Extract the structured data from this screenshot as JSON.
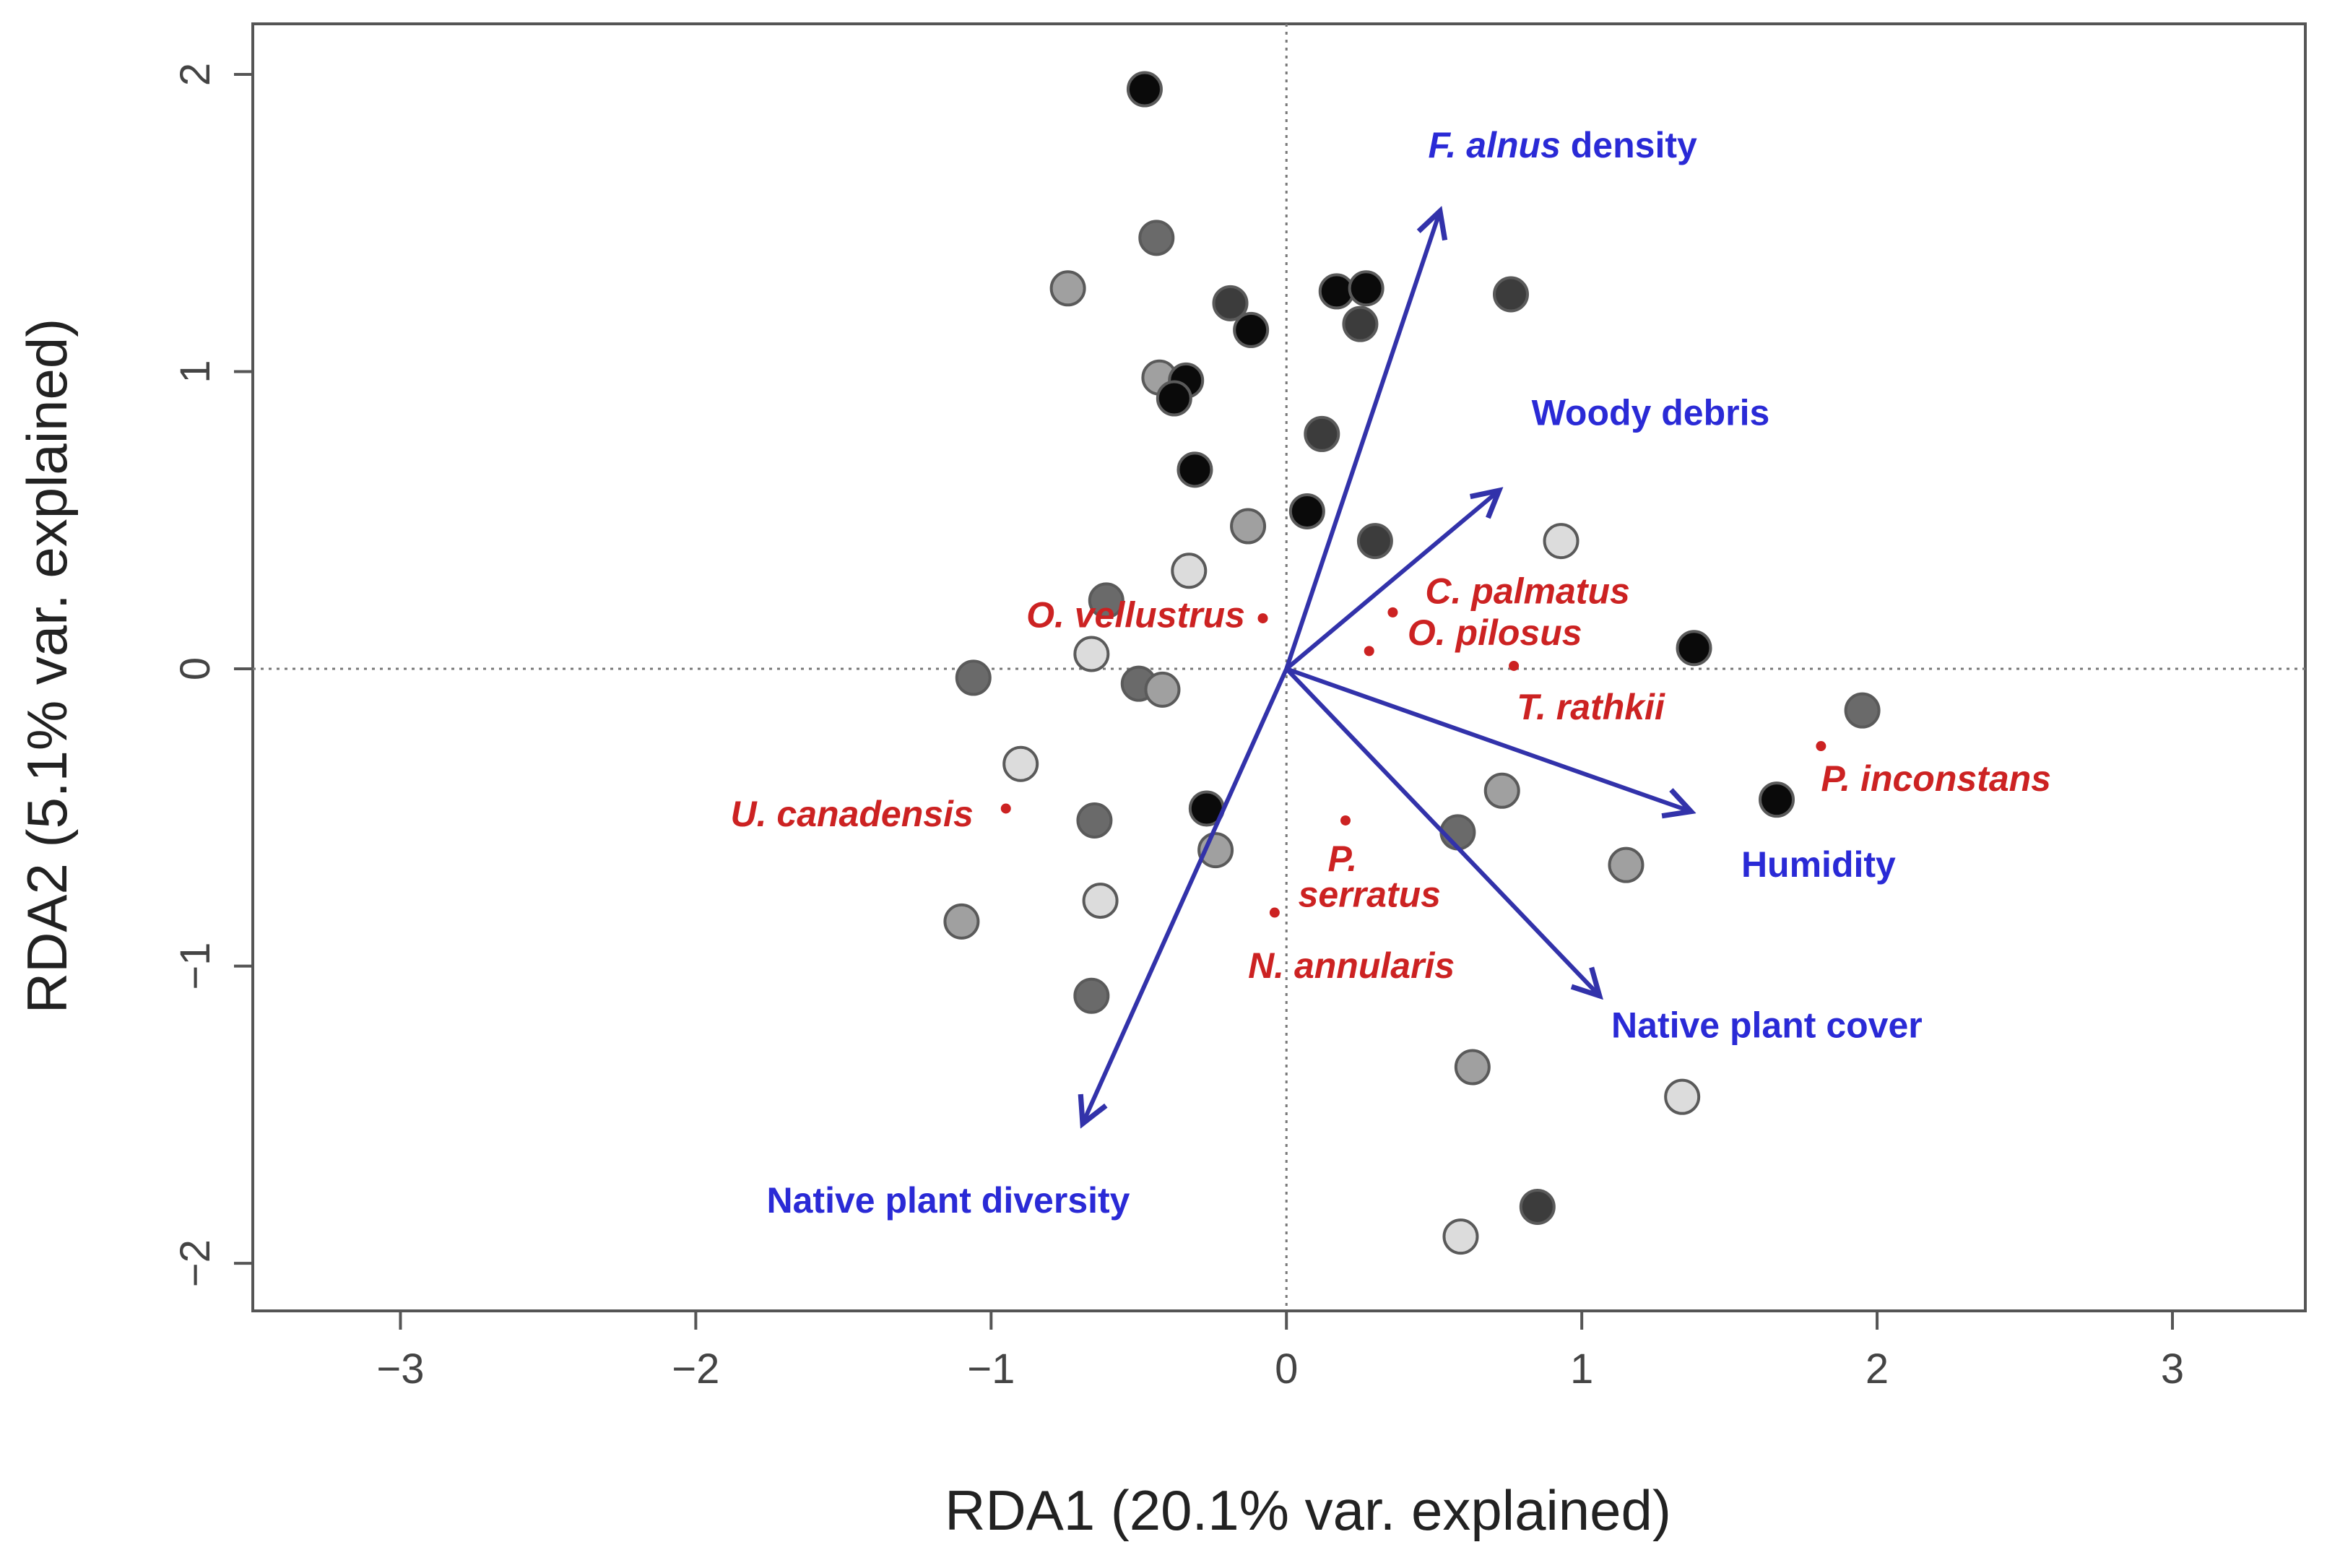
{
  "chart_data": {
    "type": "scatter",
    "subtype": "RDA triplot",
    "title": "",
    "xlabel": "RDA1 (20.1% var. explained)",
    "ylabel": "RDA2 (5.1% var. explained)",
    "xlim": [
      -3.5,
      3.45
    ],
    "ylim": [
      -2.16,
      2.17
    ],
    "xticks": [
      -3,
      -2,
      -1,
      0,
      1,
      2,
      3
    ],
    "yticks": [
      -2,
      -1,
      0,
      1,
      2
    ],
    "xtick_labels": [
      "−3",
      "−2",
      "−1",
      "0",
      "1",
      "2",
      "3"
    ],
    "ytick_labels": [
      "−2",
      "−1",
      "0",
      "1",
      "2"
    ],
    "reference_lines": {
      "x": 0,
      "y": 0,
      "style": "dotted"
    },
    "colors": {
      "arrow": "#3232aa",
      "env_label": "#2a2ad6",
      "species": "#cc2222",
      "shades": {
        "black": "#0a0a0a",
        "dark": "#3c3c3c",
        "mid": "#6a6a6a",
        "light": "#a0a0a0",
        "pale": "#dcdcdc"
      }
    },
    "sites": [
      {
        "x": -0.48,
        "y": 1.95,
        "shade": "black"
      },
      {
        "x": -0.44,
        "y": 1.45,
        "shade": "mid"
      },
      {
        "x": -0.74,
        "y": 1.28,
        "shade": "light"
      },
      {
        "x": -0.19,
        "y": 1.23,
        "shade": "dark"
      },
      {
        "x": -0.12,
        "y": 1.14,
        "shade": "black"
      },
      {
        "x": 0.17,
        "y": 1.27,
        "shade": "black"
      },
      {
        "x": 0.27,
        "y": 1.28,
        "shade": "black"
      },
      {
        "x": 0.25,
        "y": 1.16,
        "shade": "dark"
      },
      {
        "x": 0.76,
        "y": 1.26,
        "shade": "dark"
      },
      {
        "x": -0.43,
        "y": 0.98,
        "shade": "light"
      },
      {
        "x": -0.34,
        "y": 0.97,
        "shade": "black"
      },
      {
        "x": -0.38,
        "y": 0.91,
        "shade": "black"
      },
      {
        "x": 0.12,
        "y": 0.79,
        "shade": "dark"
      },
      {
        "x": -0.31,
        "y": 0.67,
        "shade": "black"
      },
      {
        "x": -0.13,
        "y": 0.48,
        "shade": "light"
      },
      {
        "x": 0.07,
        "y": 0.53,
        "shade": "black"
      },
      {
        "x": 0.3,
        "y": 0.43,
        "shade": "dark"
      },
      {
        "x": -0.33,
        "y": 0.33,
        "shade": "pale"
      },
      {
        "x": -0.61,
        "y": 0.23,
        "shade": "mid"
      },
      {
        "x": 0.93,
        "y": 0.43,
        "shade": "pale"
      },
      {
        "x": -0.66,
        "y": 0.05,
        "shade": "pale"
      },
      {
        "x": -1.06,
        "y": -0.03,
        "shade": "mid"
      },
      {
        "x": -0.5,
        "y": -0.05,
        "shade": "mid"
      },
      {
        "x": -0.42,
        "y": -0.07,
        "shade": "light"
      },
      {
        "x": 1.38,
        "y": 0.07,
        "shade": "black"
      },
      {
        "x": 1.95,
        "y": -0.14,
        "shade": "mid"
      },
      {
        "x": -0.9,
        "y": -0.32,
        "shade": "pale"
      },
      {
        "x": -0.65,
        "y": -0.51,
        "shade": "mid"
      },
      {
        "x": -0.27,
        "y": -0.47,
        "shade": "black"
      },
      {
        "x": -0.24,
        "y": -0.61,
        "shade": "light"
      },
      {
        "x": 0.73,
        "y": -0.41,
        "shade": "light"
      },
      {
        "x": 0.58,
        "y": -0.55,
        "shade": "mid"
      },
      {
        "x": 1.66,
        "y": -0.44,
        "shade": "black"
      },
      {
        "x": 1.15,
        "y": -0.66,
        "shade": "light"
      },
      {
        "x": -0.63,
        "y": -0.78,
        "shade": "pale"
      },
      {
        "x": -1.1,
        "y": -0.85,
        "shade": "light"
      },
      {
        "x": -0.66,
        "y": -1.1,
        "shade": "mid"
      },
      {
        "x": 0.63,
        "y": -1.34,
        "shade": "light"
      },
      {
        "x": 1.34,
        "y": -1.44,
        "shade": "pale"
      },
      {
        "x": 0.85,
        "y": -1.81,
        "shade": "dark"
      },
      {
        "x": 0.59,
        "y": -1.91,
        "shade": "pale"
      }
    ],
    "environmental_vectors": [
      {
        "name": "F. alnus density",
        "name_italic": "F. alnus",
        "name_rest": " density",
        "x": 0.52,
        "y": 1.54,
        "label_x": 0.48,
        "label_y": 1.72,
        "anchor": "start"
      },
      {
        "name": "Woody debris",
        "x": 0.72,
        "y": 0.6,
        "label_x": 0.83,
        "label_y": 0.82,
        "anchor": "start"
      },
      {
        "name": "Humidity",
        "x": 1.37,
        "y": -0.48,
        "label_x": 1.54,
        "label_y": -0.7,
        "anchor": "start"
      },
      {
        "name": "Native plant cover",
        "x": 1.06,
        "y": -1.1,
        "label_x": 1.1,
        "label_y": -1.24,
        "anchor": "start"
      },
      {
        "name": "Native plant diversity",
        "x": -0.69,
        "y": -1.53,
        "label_x": -1.76,
        "label_y": -1.83,
        "anchor": "start"
      }
    ],
    "species": [
      {
        "name": "O. vellustrus",
        "x": -0.08,
        "y": 0.17,
        "label_x": -0.14,
        "label_y": 0.14,
        "anchor": "end"
      },
      {
        "name": "C. palmatus",
        "x": 0.36,
        "y": 0.19,
        "label_x": 0.47,
        "label_y": 0.22,
        "anchor": "start"
      },
      {
        "name": "O. pilosus",
        "x": 0.28,
        "y": 0.06,
        "label_x": 0.41,
        "label_y": 0.08,
        "anchor": "start"
      },
      {
        "name": "T. rathkii",
        "x": 0.77,
        "y": 0.01,
        "label_x": 0.78,
        "label_y": -0.17,
        "anchor": "start"
      },
      {
        "name": "P. inconstans",
        "x": 1.81,
        "y": -0.26,
        "label_x": 1.81,
        "label_y": -0.41,
        "anchor": "start"
      },
      {
        "name": "U.  canadensis",
        "x": -0.95,
        "y": -0.47,
        "label_x": -1.06,
        "label_y": -0.53,
        "anchor": "end"
      },
      {
        "name": "P.",
        "x": 0.2,
        "y": -0.51,
        "label_x": 0.14,
        "label_y": -0.68,
        "anchor": "start"
      },
      {
        "name": "serratus",
        "x": null,
        "y": null,
        "label_x": 0.04,
        "label_y": -0.8,
        "anchor": "start"
      },
      {
        "name": "N. annularis",
        "x": -0.04,
        "y": -0.82,
        "label_x": -0.13,
        "label_y": -1.04,
        "anchor": "start"
      }
    ]
  }
}
